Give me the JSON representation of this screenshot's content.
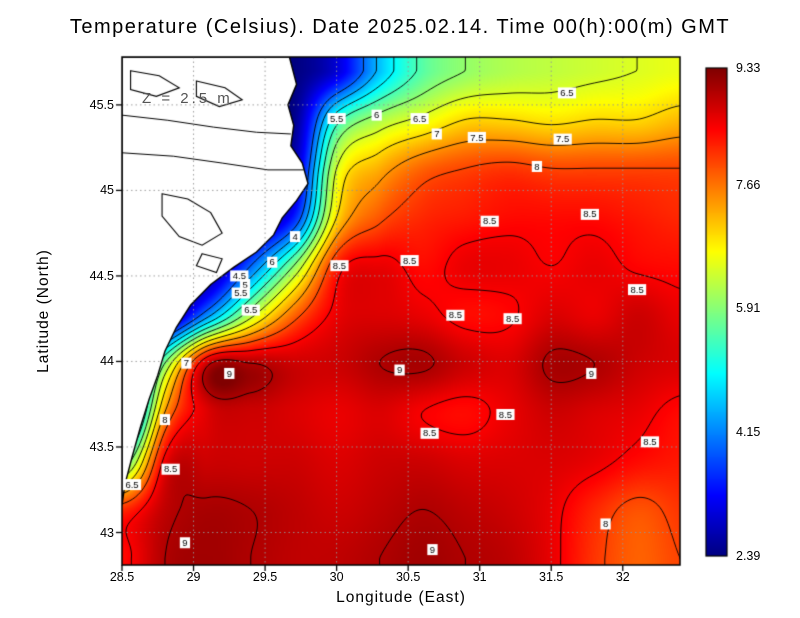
{
  "title": "Temperature (Celsius). Date 2025.02.14. Time 00(h):00(m) GMT",
  "annotation": "Z = 2.5 m",
  "chart_data": {
    "type": "heatmap",
    "title": "Temperature (Celsius). Date 2025.02.14. Time 00(h):00(m) GMT",
    "annotation": "Z = 2.5 m",
    "xlabel": "Longitude (East)",
    "ylabel": "Latitude (North)",
    "xlim": [
      28.5,
      32.4
    ],
    "ylim": [
      42.81,
      45.78
    ],
    "xticks": [
      28.5,
      29,
      29.5,
      30,
      30.5,
      31,
      31.5,
      32
    ],
    "yticks": [
      43,
      43.5,
      44,
      44.5,
      45,
      45.5
    ],
    "grid": true,
    "legend_position": "right",
    "colormap": "jet",
    "colorbar": {
      "min": 2.39,
      "max": 9.33,
      "tick_labels": [
        "9.33",
        "7.66",
        "5.91",
        "4.15",
        "2.39"
      ]
    },
    "contour_levels": [
      4,
      4.5,
      5,
      5.5,
      6,
      6.5,
      7,
      7.5,
      8,
      8.5,
      9
    ],
    "field": {
      "lon": [
        28.5,
        28.8,
        29.1,
        29.4,
        29.7,
        30.0,
        30.3,
        30.6,
        30.9,
        31.2,
        31.5,
        31.8,
        32.1,
        32.4
      ],
      "lat": [
        45.7,
        45.415,
        45.13,
        44.845,
        44.56,
        44.275,
        43.99,
        43.705,
        43.42,
        43.135,
        42.85
      ],
      "temperature": [
        [
          2.4,
          2.4,
          2.4,
          2.4,
          2.4,
          3.0,
          4.6,
          5.6,
          6.0,
          6.2,
          6.3,
          6.4,
          6.5,
          6.6
        ],
        [
          2.4,
          2.4,
          2.4,
          2.4,
          2.5,
          5.3,
          6.2,
          6.6,
          7.0,
          7.0,
          6.9,
          7.0,
          7.0,
          7.2
        ],
        [
          2.4,
          2.4,
          2.4,
          2.4,
          2.8,
          6.5,
          7.3,
          7.8,
          8.0,
          8.1,
          8.0,
          8.0,
          8.0,
          8.0
        ],
        [
          2.4,
          2.4,
          2.4,
          2.4,
          3.5,
          7.0,
          7.9,
          8.2,
          8.3,
          8.4,
          8.4,
          8.4,
          8.3,
          8.2
        ],
        [
          2.4,
          2.4,
          2.4,
          4.0,
          6.0,
          8.3,
          8.6,
          8.4,
          8.6,
          8.6,
          8.5,
          8.6,
          8.45,
          8.4
        ],
        [
          2.4,
          2.4,
          4.3,
          6.3,
          7.8,
          8.6,
          8.7,
          8.6,
          8.4,
          8.45,
          8.7,
          8.6,
          8.8,
          8.6
        ],
        [
          2.4,
          6.0,
          8.9,
          9.0,
          8.8,
          8.8,
          9.0,
          9.05,
          8.8,
          8.7,
          9.05,
          9.0,
          8.8,
          8.7
        ],
        [
          3.0,
          7.5,
          8.7,
          8.8,
          8.7,
          8.6,
          8.7,
          8.5,
          8.4,
          8.6,
          8.8,
          8.7,
          8.6,
          8.4
        ],
        [
          5.5,
          8.6,
          8.8,
          8.8,
          8.8,
          8.7,
          8.8,
          8.8,
          8.7,
          8.7,
          8.7,
          8.6,
          8.4,
          8.3
        ],
        [
          8.2,
          8.9,
          9.05,
          9.0,
          8.9,
          8.8,
          8.9,
          9.0,
          8.9,
          8.8,
          8.6,
          8.2,
          7.9,
          8.1
        ],
        [
          8.4,
          9.0,
          9.1,
          9.0,
          8.9,
          8.9,
          9.0,
          9.1,
          9.0,
          8.9,
          8.6,
          8.1,
          7.8,
          8.0
        ]
      ]
    },
    "contour_labels": [
      {
        "label": "6",
        "lon": 30.28,
        "lat": 45.44
      },
      {
        "label": "5.5",
        "lon": 30.0,
        "lat": 45.42
      },
      {
        "label": "6.5",
        "lon": 30.58,
        "lat": 45.42
      },
      {
        "label": "7",
        "lon": 30.7,
        "lat": 45.33
      },
      {
        "label": "7.5",
        "lon": 30.98,
        "lat": 45.31
      },
      {
        "label": "6.5",
        "lon": 31.61,
        "lat": 45.57
      },
      {
        "label": "7.5",
        "lon": 31.58,
        "lat": 45.3
      },
      {
        "label": "8",
        "lon": 31.4,
        "lat": 45.14
      },
      {
        "label": "8.5",
        "lon": 31.07,
        "lat": 44.82
      },
      {
        "label": "8.5",
        "lon": 31.77,
        "lat": 44.86
      },
      {
        "label": "4",
        "lon": 29.71,
        "lat": 44.73
      },
      {
        "label": "4.5",
        "lon": 29.32,
        "lat": 44.5
      },
      {
        "label": "5",
        "lon": 29.36,
        "lat": 44.45
      },
      {
        "label": "5.5",
        "lon": 29.33,
        "lat": 44.4
      },
      {
        "label": "6",
        "lon": 29.55,
        "lat": 44.58
      },
      {
        "label": "6.5",
        "lon": 29.4,
        "lat": 44.3
      },
      {
        "label": "8.5",
        "lon": 30.02,
        "lat": 44.56
      },
      {
        "label": "8.5",
        "lon": 30.51,
        "lat": 44.59
      },
      {
        "label": "8.5",
        "lon": 32.1,
        "lat": 44.42
      },
      {
        "label": "8.5",
        "lon": 30.83,
        "lat": 44.27
      },
      {
        "label": "8.5",
        "lon": 31.23,
        "lat": 44.25
      },
      {
        "label": "7",
        "lon": 28.95,
        "lat": 43.99
      },
      {
        "label": "9",
        "lon": 29.25,
        "lat": 43.93
      },
      {
        "label": "9",
        "lon": 30.44,
        "lat": 43.95
      },
      {
        "label": "9",
        "lon": 31.78,
        "lat": 43.93
      },
      {
        "label": "8.5",
        "lon": 31.18,
        "lat": 43.69
      },
      {
        "label": "8.5",
        "lon": 30.65,
        "lat": 43.58
      },
      {
        "label": "8",
        "lon": 28.8,
        "lat": 43.66
      },
      {
        "label": "8.5",
        "lon": 28.84,
        "lat": 43.37
      },
      {
        "label": "6.5",
        "lon": 28.57,
        "lat": 43.28
      },
      {
        "label": "8.5",
        "lon": 32.19,
        "lat": 43.53
      },
      {
        "label": "9",
        "lon": 28.94,
        "lat": 42.94
      },
      {
        "label": "9",
        "lon": 30.67,
        "lat": 42.9
      },
      {
        "label": "8",
        "lon": 31.88,
        "lat": 43.05
      }
    ],
    "coastline": {
      "land": [
        [
          29.67,
          45.78
        ],
        [
          29.72,
          45.62
        ],
        [
          29.66,
          45.5
        ],
        [
          29.7,
          45.38
        ],
        [
          29.68,
          45.26
        ],
        [
          29.76,
          45.16
        ],
        [
          29.8,
          45.04
        ],
        [
          29.72,
          44.94
        ],
        [
          29.62,
          44.84
        ],
        [
          29.56,
          44.74
        ],
        [
          29.44,
          44.64
        ],
        [
          29.28,
          44.55
        ],
        [
          29.12,
          44.45
        ],
        [
          28.98,
          44.33
        ],
        [
          28.88,
          44.2
        ],
        [
          28.8,
          44.06
        ],
        [
          28.75,
          43.92
        ],
        [
          28.69,
          43.78
        ],
        [
          28.63,
          43.62
        ],
        [
          28.57,
          43.44
        ],
        [
          28.52,
          43.28
        ],
        [
          28.5,
          43.16
        ],
        [
          28.5,
          45.78
        ]
      ],
      "lakes": [
        [
          [
            28.78,
            44.98
          ],
          [
            28.96,
            44.95
          ],
          [
            29.12,
            44.87
          ],
          [
            29.2,
            44.75
          ],
          [
            29.06,
            44.68
          ],
          [
            28.9,
            44.73
          ],
          [
            28.78,
            44.85
          ]
        ],
        [
          [
            29.06,
            44.63
          ],
          [
            29.2,
            44.6
          ],
          [
            29.16,
            44.52
          ],
          [
            29.02,
            44.56
          ]
        ],
        [
          [
            28.56,
            45.7
          ],
          [
            28.76,
            45.67
          ],
          [
            28.9,
            45.6
          ],
          [
            28.74,
            45.55
          ],
          [
            28.56,
            45.59
          ]
        ],
        [
          [
            29.02,
            45.64
          ],
          [
            29.22,
            45.6
          ],
          [
            29.34,
            45.53
          ],
          [
            29.18,
            45.49
          ],
          [
            29.02,
            45.55
          ]
        ]
      ],
      "rivers": [
        [
          [
            28.5,
            45.44
          ],
          [
            28.82,
            45.41
          ],
          [
            29.14,
            45.37
          ],
          [
            29.44,
            45.34
          ],
          [
            29.68,
            45.33
          ]
        ],
        [
          [
            28.5,
            45.22
          ],
          [
            28.86,
            45.2
          ],
          [
            29.2,
            45.16
          ],
          [
            29.52,
            45.12
          ],
          [
            29.77,
            45.12
          ]
        ]
      ]
    }
  }
}
